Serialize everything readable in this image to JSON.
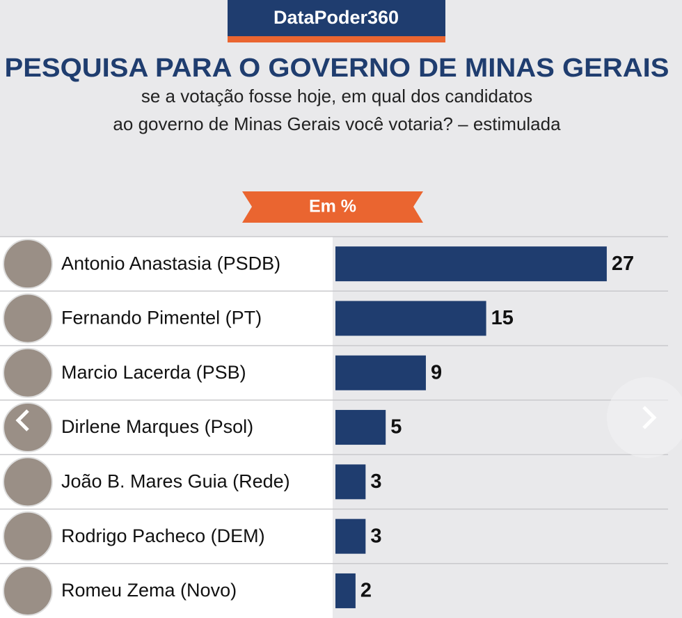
{
  "chart_data": {
    "type": "bar",
    "orientation": "horizontal",
    "brand": "DataPoder360",
    "title": "PESQUISA PARA O GOVERNO DE MINAS GERAIS",
    "subtitle": [
      "se a votação fosse hoje, em qual dos candidatos",
      "ao governo de Minas Gerais você votaria? – estimulada"
    ],
    "unit_label": "Em %",
    "categories": [
      "Antonio Anastasia (PSDB)",
      "Fernando Pimentel (PT)",
      "Marcio Lacerda (PSB)",
      "Dirlene Marques (Psol)",
      "João B. Mares Guia (Rede)",
      "Rodrigo Pacheco (DEM)",
      "Romeu Zema (Novo)"
    ],
    "values": [
      27,
      15,
      9,
      5,
      3,
      3,
      2
    ],
    "color": "#1f3d6f"
  }
}
